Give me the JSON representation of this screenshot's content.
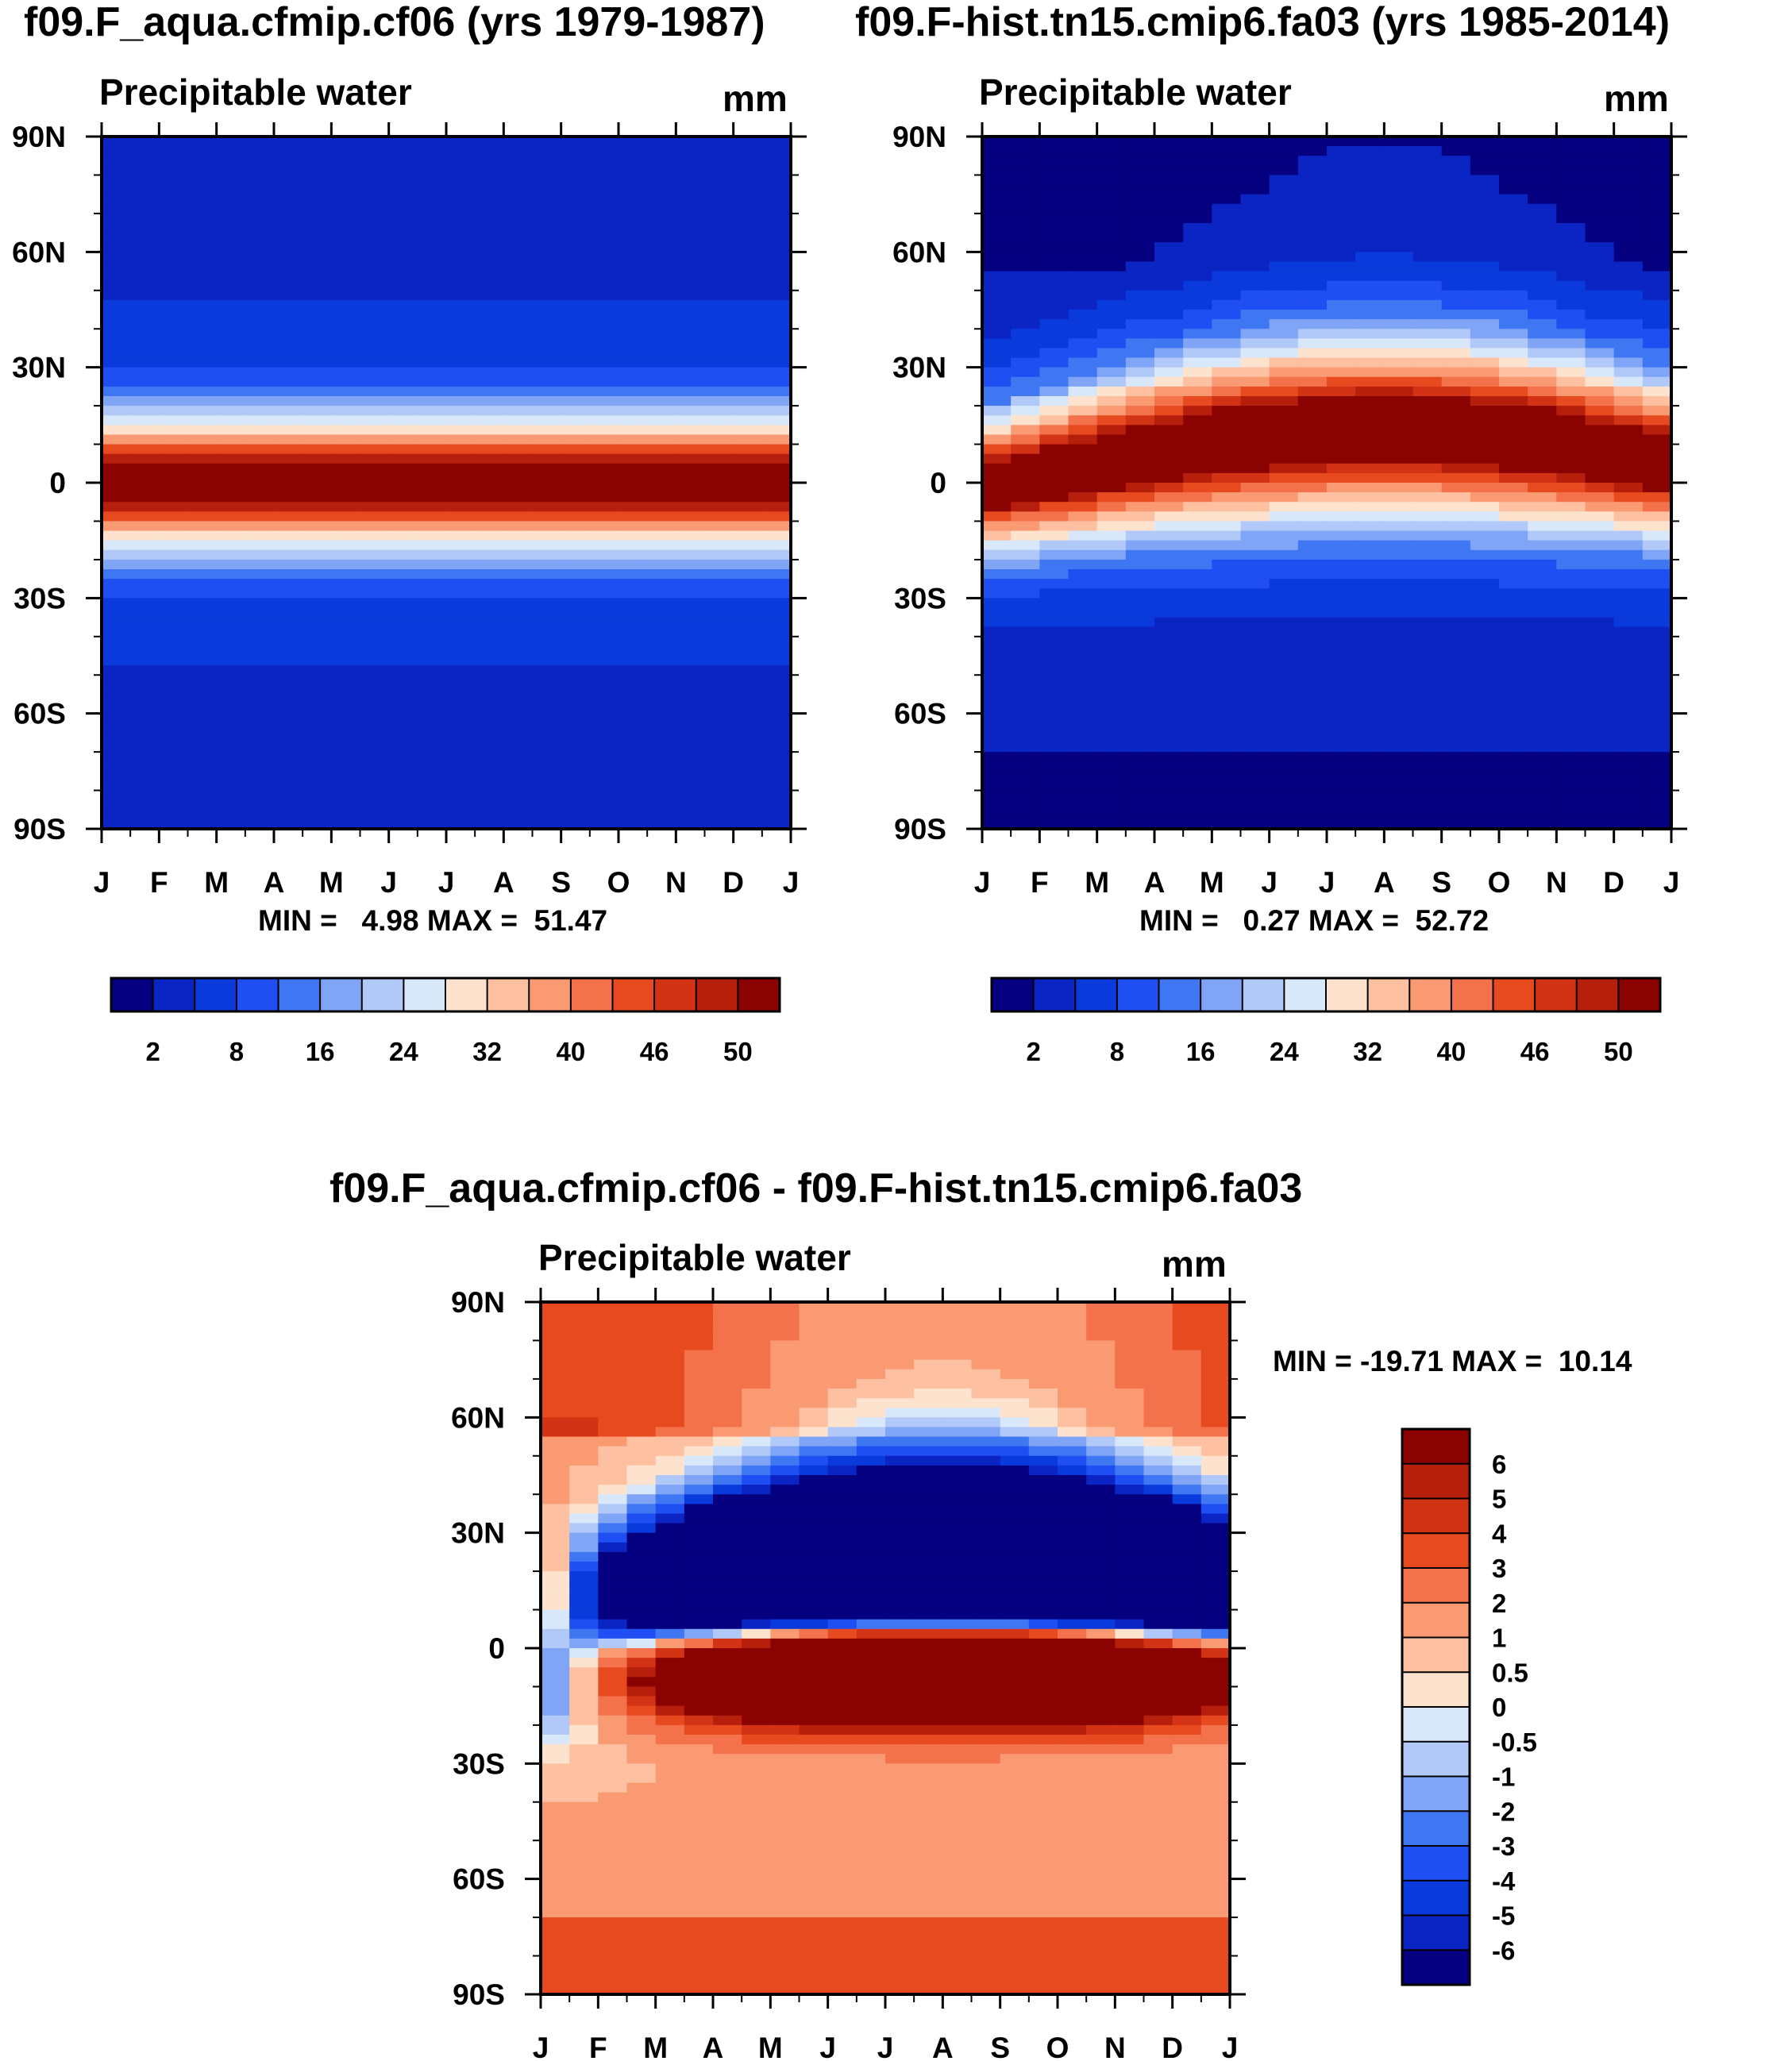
{
  "chart_data": [
    {
      "id": "p1",
      "type": "heatmap",
      "title": "f09.F_aqua.cfmip.cf06 (yrs 1979-1987)",
      "variable": "Precipitable water",
      "units": "mm",
      "x_ticks": [
        "J",
        "F",
        "M",
        "A",
        "M",
        "J",
        "J",
        "A",
        "S",
        "O",
        "N",
        "D",
        "J"
      ],
      "y_ticks": [
        "90N",
        "60N",
        "30N",
        "0",
        "30S",
        "60S",
        "90S"
      ],
      "stats": "MIN =   4.98 MAX =  51.47",
      "colorbar_levels": [
        2,
        8,
        16,
        24,
        32,
        40,
        46,
        50
      ],
      "colorbar_labels": [
        "2",
        "8",
        "16",
        "24",
        "32",
        "40",
        "46",
        "50"
      ],
      "bins_sample_lat": [
        -90,
        -60,
        -50,
        -40,
        -30,
        -25,
        -20,
        -15,
        -10,
        -8,
        -5,
        0,
        5,
        8,
        10,
        15,
        20,
        25,
        30,
        40,
        50,
        60,
        90
      ],
      "seasonal": "none"
    },
    {
      "id": "p2",
      "type": "heatmap",
      "title": "f09.F-hist.tn15.cmip6.fa03 (yrs 1985-2014)",
      "variable": "Precipitable water",
      "units": "mm",
      "x_ticks": [
        "J",
        "F",
        "M",
        "A",
        "M",
        "J",
        "J",
        "A",
        "S",
        "O",
        "N",
        "D",
        "J"
      ],
      "y_ticks": [
        "90N",
        "60N",
        "30N",
        "0",
        "30S",
        "60S",
        "90S"
      ],
      "stats": "MIN =   0.27 MAX =  52.72",
      "colorbar_levels": [
        2,
        8,
        16,
        24,
        32,
        40,
        46,
        50
      ],
      "colorbar_labels": [
        "2",
        "8",
        "16",
        "24",
        "32",
        "40",
        "46",
        "50"
      ],
      "seasonal": "northward shift of moist band in boreal summer"
    },
    {
      "id": "p3",
      "type": "heatmap",
      "title": "f09.F_aqua.cfmip.cf06 - f09.F-hist.tn15.cmip6.fa03",
      "variable": "Precipitable water",
      "units": "mm",
      "x_ticks": [
        "J",
        "F",
        "M",
        "A",
        "M",
        "J",
        "J",
        "A",
        "S",
        "O",
        "N",
        "D",
        "J"
      ],
      "y_ticks": [
        "90N",
        "60N",
        "30N",
        "0",
        "30S",
        "60S",
        "90S"
      ],
      "stats": "MIN = -19.71 MAX =  10.14",
      "colorbar_labels": [
        "6",
        "5",
        "4",
        "3",
        "2",
        "1",
        "0.5",
        "0",
        "-0.5",
        "-1",
        "-2",
        "-3",
        "-4",
        "-5",
        "-6"
      ],
      "colorbar_levels": [
        6,
        5,
        4,
        3,
        2,
        1,
        0.5,
        0,
        -0.5,
        -1,
        -2,
        -3,
        -4,
        -5,
        -6
      ]
    }
  ],
  "palette_abs": [
    "#05007f",
    "#0a25c3",
    "#0a3adb",
    "#1f4ef3",
    "#3f77f3",
    "#80a5f7",
    "#b1c9f9",
    "#d9e7fb",
    "#fde3cd",
    "#fdc0a0",
    "#f99a73",
    "#f3714b",
    "#e84a20",
    "#d33315",
    "#b61f0c",
    "#8b0202"
  ],
  "palette_diff": [
    "#05007f",
    "#0a25c3",
    "#0a3adb",
    "#1f4ef3",
    "#3f77f3",
    "#80a5f7",
    "#b1c9f9",
    "#d9e7fb",
    "#fde3cd",
    "#fdc0a0",
    "#f99a73",
    "#f3714b",
    "#e84a20",
    "#d33315",
    "#b61f0c",
    "#8b0202"
  ]
}
